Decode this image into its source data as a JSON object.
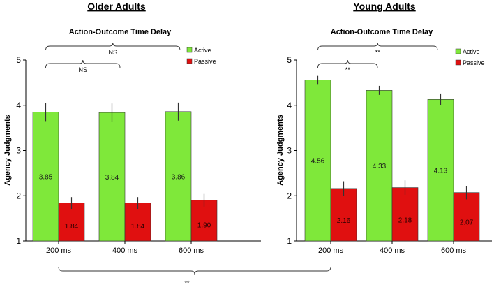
{
  "chart_data": [
    {
      "type": "bar",
      "title": "Older Adults",
      "subtitle": "Action-Outcome Time Delay",
      "ylabel": "Agency Judgments",
      "xlabel": "",
      "ylim": [
        1,
        5
      ],
      "yticks": [
        "1",
        "2",
        "3",
        "4",
        "5"
      ],
      "categories": [
        "200 ms",
        "400 ms",
        "600 ms"
      ],
      "series": [
        {
          "name": "Active",
          "color": "#7fe83a",
          "values": [
            3.85,
            3.84,
            3.86
          ],
          "labels": [
            "3.85",
            "3.84",
            "3.86"
          ],
          "errors": [
            0.2,
            0.2,
            0.2
          ]
        },
        {
          "name": "Passive",
          "color": "#e01010",
          "values": [
            1.84,
            1.84,
            1.9
          ],
          "labels": [
            "1.84",
            "1.84",
            "1.90"
          ],
          "errors": [
            0.13,
            0.13,
            0.14
          ]
        }
      ],
      "legend": [
        "Active",
        "Passive"
      ],
      "annotations": [
        {
          "text": "NS",
          "from": "200 ms",
          "to": "600 ms",
          "level": "top"
        },
        {
          "text": "NS",
          "from": "200 ms",
          "to": "400 ms",
          "level": "lower"
        }
      ]
    },
    {
      "type": "bar",
      "title": "Young Adults",
      "subtitle": "Action-Outcome Time Delay",
      "ylabel": "Agency Judgments",
      "xlabel": "",
      "ylim": [
        1,
        5
      ],
      "yticks": [
        "1",
        "2",
        "3",
        "4",
        "5"
      ],
      "categories": [
        "200 ms",
        "400 ms",
        "600 ms"
      ],
      "series": [
        {
          "name": "Active",
          "color": "#7fe83a",
          "values": [
            4.56,
            4.33,
            4.13
          ],
          "labels": [
            "4.56",
            "4.33",
            "4.13"
          ],
          "errors": [
            0.09,
            0.1,
            0.13
          ]
        },
        {
          "name": "Passive",
          "color": "#e01010",
          "values": [
            2.16,
            2.18,
            2.07
          ],
          "labels": [
            "2.16",
            "2.18",
            "2.07"
          ],
          "errors": [
            0.16,
            0.16,
            0.15
          ]
        }
      ],
      "legend": [
        "Active",
        "Passive"
      ],
      "annotations": [
        {
          "text": "**",
          "from": "200 ms",
          "to": "600 ms",
          "level": "top"
        },
        {
          "text": "**",
          "from": "200 ms",
          "to": "400 ms",
          "level": "lower"
        }
      ]
    }
  ],
  "group_comparison": {
    "text": "**",
    "between": [
      "Older Adults",
      "Young Adults"
    ]
  }
}
